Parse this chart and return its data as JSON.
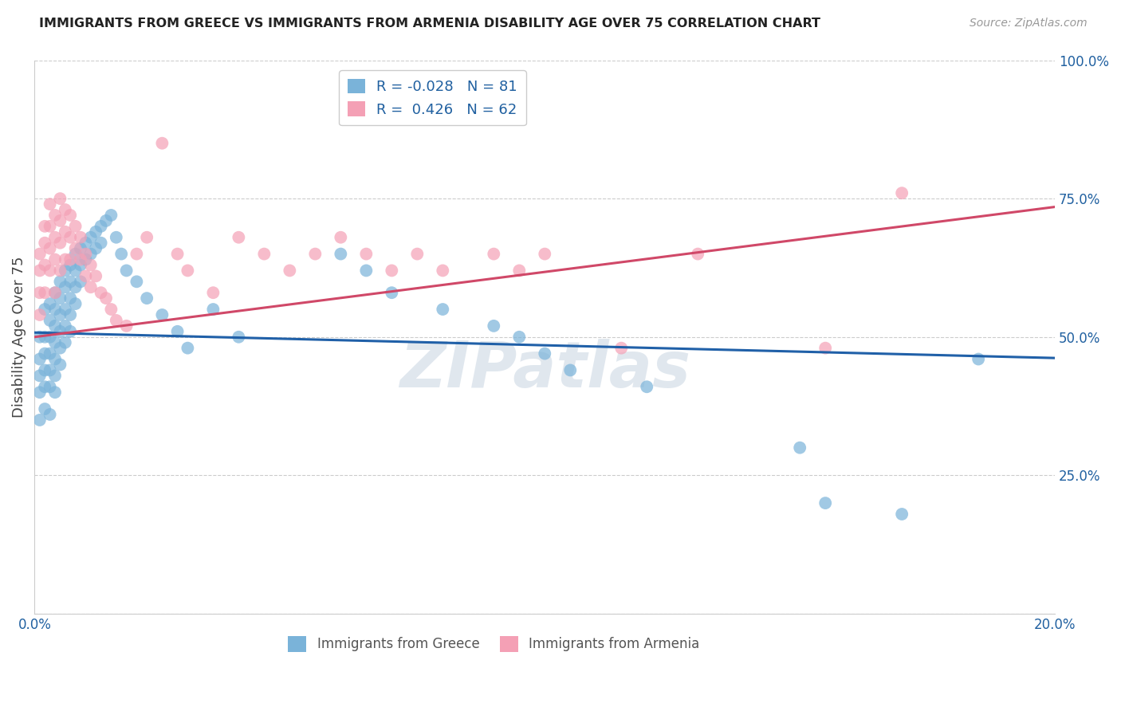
{
  "title": "IMMIGRANTS FROM GREECE VS IMMIGRANTS FROM ARMENIA DISABILITY AGE OVER 75 CORRELATION CHART",
  "source": "Source: ZipAtlas.com",
  "ylabel": "Disability Age Over 75",
  "r_greece": -0.028,
  "n_greece": 81,
  "r_armenia": 0.426,
  "n_armenia": 62,
  "xlim": [
    0.0,
    0.2
  ],
  "ylim": [
    0.0,
    1.0
  ],
  "color_greece": "#7ab3d9",
  "color_armenia": "#f4a0b5",
  "line_color_greece": "#2060a8",
  "line_color_armenia": "#d04868",
  "greece_line_y0": 0.508,
  "greece_line_y1": 0.462,
  "armenia_line_y0": 0.5,
  "armenia_line_y1": 0.735,
  "greece_x": [
    0.001,
    0.001,
    0.001,
    0.001,
    0.001,
    0.002,
    0.002,
    0.002,
    0.002,
    0.002,
    0.002,
    0.003,
    0.003,
    0.003,
    0.003,
    0.003,
    0.003,
    0.003,
    0.004,
    0.004,
    0.004,
    0.004,
    0.004,
    0.004,
    0.004,
    0.005,
    0.005,
    0.005,
    0.005,
    0.005,
    0.005,
    0.006,
    0.006,
    0.006,
    0.006,
    0.006,
    0.007,
    0.007,
    0.007,
    0.007,
    0.007,
    0.008,
    0.008,
    0.008,
    0.008,
    0.009,
    0.009,
    0.009,
    0.01,
    0.01,
    0.011,
    0.011,
    0.012,
    0.012,
    0.013,
    0.013,
    0.014,
    0.015,
    0.016,
    0.017,
    0.018,
    0.02,
    0.022,
    0.025,
    0.028,
    0.03,
    0.035,
    0.04,
    0.06,
    0.065,
    0.07,
    0.08,
    0.09,
    0.095,
    0.1,
    0.105,
    0.12,
    0.15,
    0.155,
    0.17,
    0.185
  ],
  "greece_y": [
    0.5,
    0.46,
    0.43,
    0.4,
    0.35,
    0.55,
    0.5,
    0.47,
    0.44,
    0.41,
    0.37,
    0.56,
    0.53,
    0.5,
    0.47,
    0.44,
    0.41,
    0.36,
    0.58,
    0.55,
    0.52,
    0.49,
    0.46,
    0.43,
    0.4,
    0.6,
    0.57,
    0.54,
    0.51,
    0.48,
    0.45,
    0.62,
    0.59,
    0.55,
    0.52,
    0.49,
    0.63,
    0.6,
    0.57,
    0.54,
    0.51,
    0.65,
    0.62,
    0.59,
    0.56,
    0.66,
    0.63,
    0.6,
    0.67,
    0.64,
    0.68,
    0.65,
    0.69,
    0.66,
    0.7,
    0.67,
    0.71,
    0.72,
    0.68,
    0.65,
    0.62,
    0.6,
    0.57,
    0.54,
    0.51,
    0.48,
    0.55,
    0.5,
    0.65,
    0.62,
    0.58,
    0.55,
    0.52,
    0.5,
    0.47,
    0.44,
    0.41,
    0.3,
    0.2,
    0.18,
    0.46
  ],
  "armenia_x": [
    0.001,
    0.001,
    0.001,
    0.001,
    0.002,
    0.002,
    0.002,
    0.002,
    0.003,
    0.003,
    0.003,
    0.003,
    0.004,
    0.004,
    0.004,
    0.004,
    0.005,
    0.005,
    0.005,
    0.005,
    0.006,
    0.006,
    0.006,
    0.007,
    0.007,
    0.007,
    0.008,
    0.008,
    0.009,
    0.009,
    0.01,
    0.01,
    0.011,
    0.011,
    0.012,
    0.013,
    0.014,
    0.015,
    0.016,
    0.018,
    0.02,
    0.022,
    0.025,
    0.028,
    0.03,
    0.035,
    0.04,
    0.045,
    0.05,
    0.055,
    0.06,
    0.065,
    0.07,
    0.075,
    0.08,
    0.09,
    0.095,
    0.1,
    0.115,
    0.13,
    0.155,
    0.17
  ],
  "armenia_y": [
    0.65,
    0.62,
    0.58,
    0.54,
    0.7,
    0.67,
    0.63,
    0.58,
    0.74,
    0.7,
    0.66,
    0.62,
    0.72,
    0.68,
    0.64,
    0.58,
    0.75,
    0.71,
    0.67,
    0.62,
    0.73,
    0.69,
    0.64,
    0.72,
    0.68,
    0.64,
    0.7,
    0.66,
    0.68,
    0.64,
    0.65,
    0.61,
    0.63,
    0.59,
    0.61,
    0.58,
    0.57,
    0.55,
    0.53,
    0.52,
    0.65,
    0.68,
    0.85,
    0.65,
    0.62,
    0.58,
    0.68,
    0.65,
    0.62,
    0.65,
    0.68,
    0.65,
    0.62,
    0.65,
    0.62,
    0.65,
    0.62,
    0.65,
    0.48,
    0.65,
    0.48,
    0.76
  ],
  "background_color": "#ffffff",
  "grid_color": "#cccccc",
  "title_color": "#222222",
  "axis_color": "#2060a0"
}
